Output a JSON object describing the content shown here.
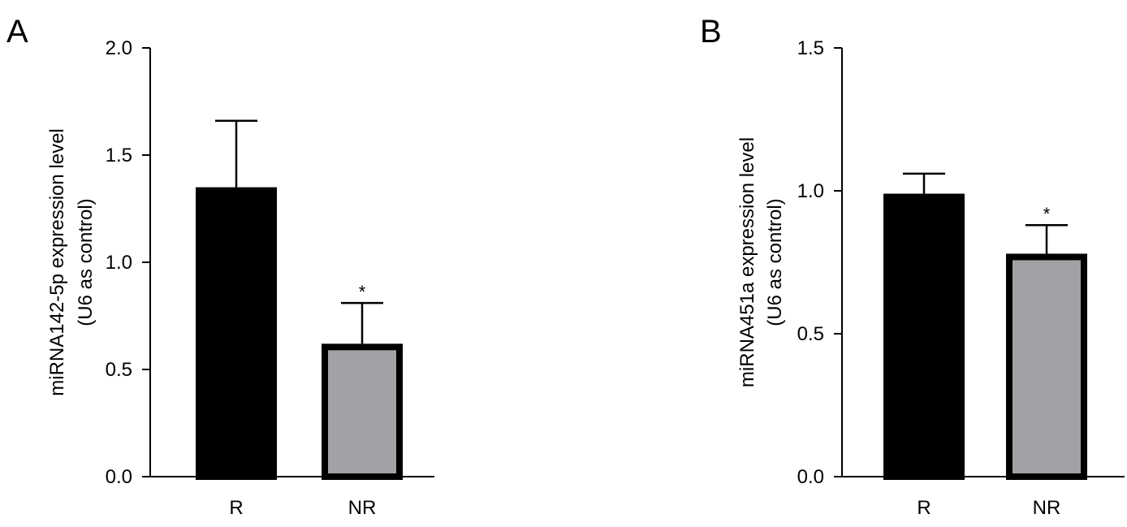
{
  "chart_data": [
    {
      "type": "bar",
      "panel_label": "A",
      "categories": [
        "R",
        "NR"
      ],
      "values": [
        1.35,
        0.62
      ],
      "errors": [
        0.31,
        0.19
      ],
      "significance": [
        "",
        "*"
      ],
      "bar_colors": [
        "#000000",
        "#a2a2a6"
      ],
      "ylabel": [
        "miRNA142-5p expression level",
        "(U6 as control)"
      ],
      "ylim": [
        0,
        2.0
      ],
      "yticks": [
        "0.0",
        "0.5",
        "1.0",
        "1.5",
        "2.0"
      ],
      "grid": false
    },
    {
      "type": "bar",
      "panel_label": "B",
      "categories": [
        "R",
        "NR"
      ],
      "values": [
        0.99,
        0.78
      ],
      "errors": [
        0.07,
        0.1
      ],
      "significance": [
        "",
        "*"
      ],
      "bar_colors": [
        "#000000",
        "#a2a2a6"
      ],
      "ylabel": [
        "miRNA451a expression level",
        "(U6 as control)"
      ],
      "ylim": [
        0,
        1.5
      ],
      "yticks": [
        "0.0",
        "0.5",
        "1.0",
        "1.5"
      ],
      "grid": false
    }
  ]
}
